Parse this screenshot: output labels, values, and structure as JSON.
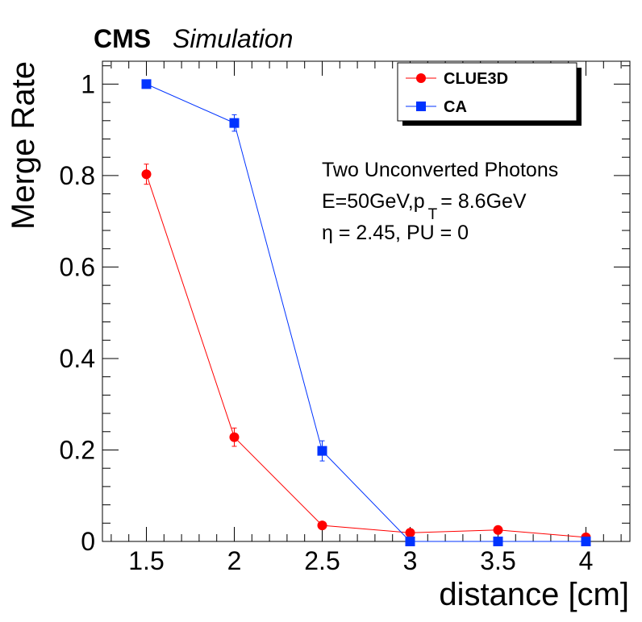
{
  "header": {
    "experiment": "CMS",
    "tag": "Simulation"
  },
  "annotations": [
    "Two Unconverted Photons",
    "E=50GeV,p",
    "T",
    "= 8.6GeV",
    "η = 2.45, PU = 0"
  ],
  "colors": {
    "clue3d": "#ff0000",
    "ca": "#0033ff",
    "axis": "#000000"
  },
  "chart_data": {
    "type": "line",
    "xlabel": "distance [cm]",
    "ylabel": "Merge Rate",
    "xlim": [
      1.25,
      4.25
    ],
    "ylim": [
      0,
      1.05
    ],
    "x_ticks": [
      1.5,
      2,
      2.5,
      3,
      3.5,
      4
    ],
    "x_tick_labels": [
      "1.5",
      "2",
      "2.5",
      "3",
      "3.5",
      "4"
    ],
    "y_ticks": [
      0,
      0.2,
      0.4,
      0.6,
      0.8,
      1
    ],
    "y_tick_labels": [
      "0",
      "0.2",
      "0.4",
      "0.6",
      "0.8",
      "1"
    ],
    "legend_position": "top-right",
    "series": [
      {
        "name": "CLUE3D",
        "marker": "circle",
        "x": [
          1.5,
          2,
          2.5,
          3,
          3.5,
          4
        ],
        "y": [
          0.803,
          0.228,
          0.035,
          0.019,
          0.025,
          0.009
        ],
        "err": [
          0.022,
          0.02,
          0.007,
          0.005,
          0.006,
          0.004
        ]
      },
      {
        "name": "CA",
        "marker": "square",
        "x": [
          1.5,
          2,
          2.5,
          3,
          3.5,
          4
        ],
        "y": [
          1.0,
          0.915,
          0.198,
          0.0,
          0.0,
          0.0
        ],
        "err": [
          0.0,
          0.018,
          0.022,
          0.0,
          0.0,
          0.0
        ]
      }
    ]
  }
}
